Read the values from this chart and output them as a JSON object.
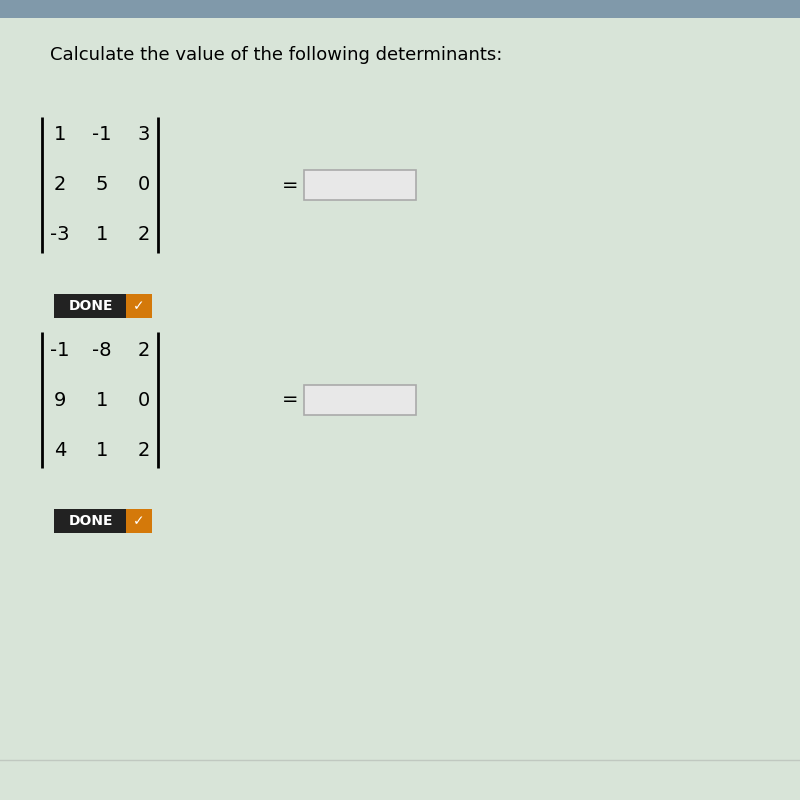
{
  "title": "Calculate the value of the following determinants:",
  "title_fontsize": 13,
  "bg_color": "#d8e4d8",
  "top_bar_color": "#8099aa",
  "matrix1": [
    [
      "1",
      "-1",
      "3"
    ],
    [
      "2",
      "5",
      "0"
    ],
    [
      "-3",
      "1",
      "2"
    ]
  ],
  "matrix2": [
    [
      "-1",
      "-8",
      "2"
    ],
    [
      "9",
      "1",
      "0"
    ],
    [
      "4",
      "1",
      "2"
    ]
  ],
  "done_btn_dark": "#222222",
  "done_btn_orange": "#d4790a",
  "done_btn_text_color": "#ffffff",
  "matrix_fontsize": 14,
  "done_fontsize": 10,
  "equals_fontsize": 14
}
